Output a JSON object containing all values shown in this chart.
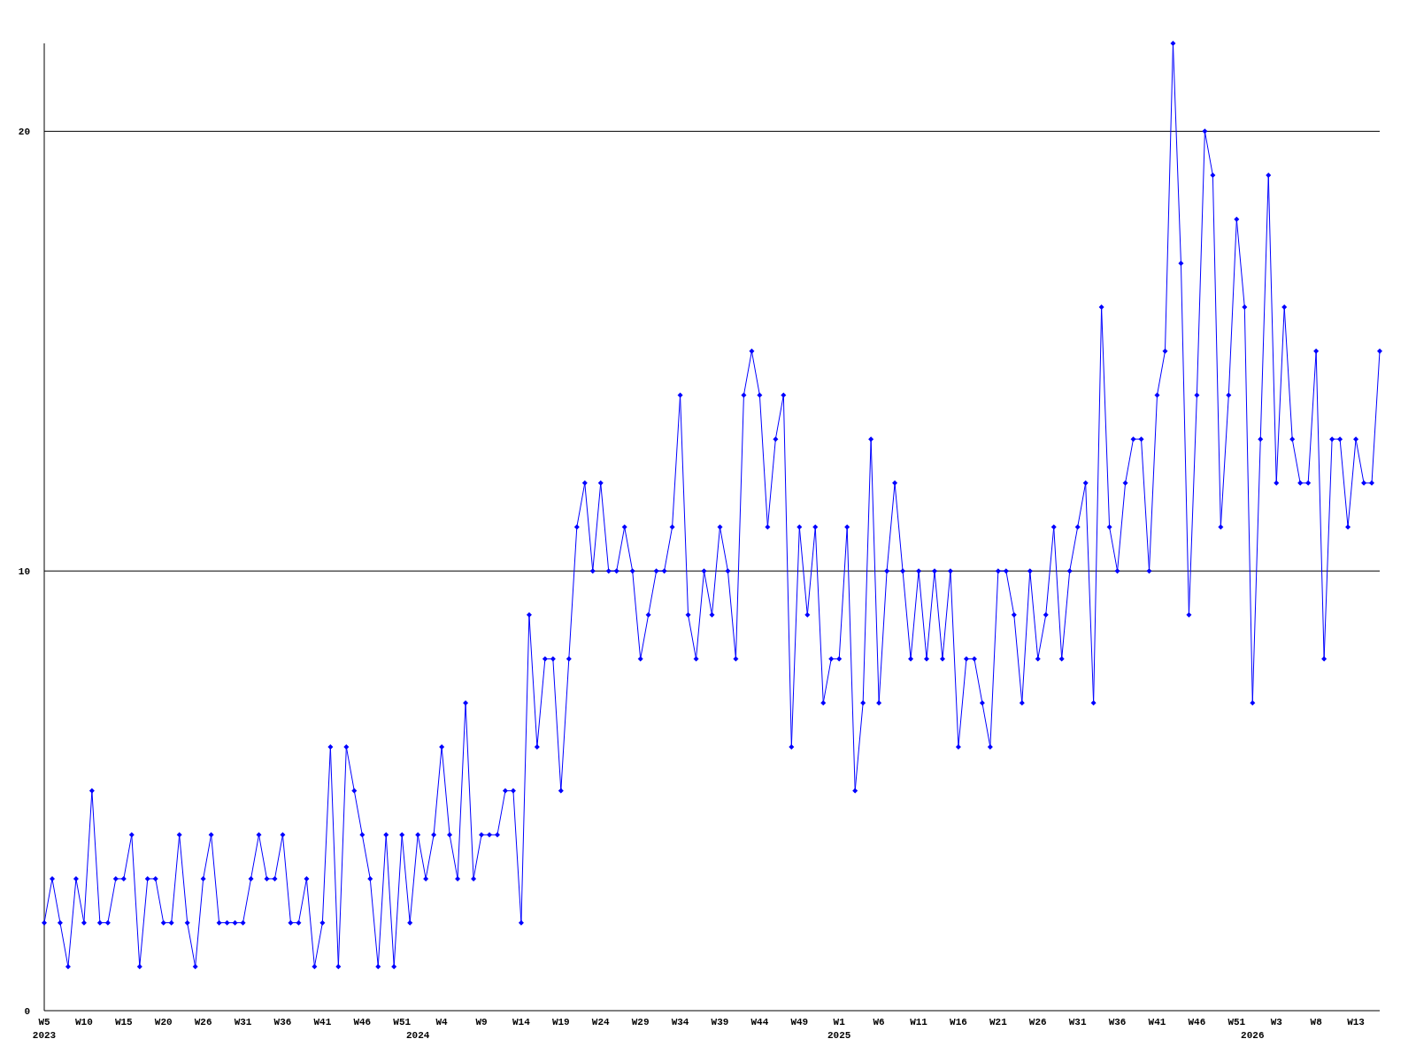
{
  "chart_data": {
    "type": "line",
    "categories": [
      "W5\n2023",
      null,
      null,
      null,
      null,
      "W10",
      null,
      null,
      null,
      null,
      "W15",
      null,
      null,
      null,
      null,
      "W20",
      null,
      null,
      null,
      null,
      "W26",
      null,
      null,
      null,
      null,
      "W31",
      null,
      null,
      null,
      null,
      "W36",
      null,
      null,
      null,
      null,
      "W41",
      null,
      null,
      null,
      null,
      "W46",
      null,
      null,
      null,
      null,
      "W51",
      null,
      "\n2024",
      null,
      null,
      "W4",
      null,
      null,
      null,
      null,
      "W9",
      null,
      null,
      null,
      null,
      "W14",
      null,
      null,
      null,
      null,
      "W19",
      null,
      null,
      null,
      null,
      "W24",
      null,
      null,
      null,
      null,
      "W29",
      null,
      null,
      null,
      null,
      "W34",
      null,
      null,
      null,
      null,
      "W39",
      null,
      null,
      null,
      null,
      "W44",
      null,
      null,
      null,
      null,
      "W49",
      null,
      null,
      null,
      null,
      "W1\n2025",
      null,
      null,
      null,
      null,
      "W6",
      null,
      null,
      null,
      null,
      "W11",
      null,
      null,
      null,
      null,
      "W16",
      null,
      null,
      null,
      null,
      "W21",
      null,
      null,
      null,
      null,
      "W26",
      null,
      null,
      null,
      null,
      "W31",
      null,
      null,
      null,
      null,
      "W36",
      null,
      null,
      null,
      null,
      "W41",
      null,
      null,
      null,
      null,
      "W46",
      null,
      null,
      null,
      null,
      "W51",
      null,
      "\n2026",
      null,
      null,
      "W3",
      null,
      null,
      null,
      null,
      "W8",
      null,
      null,
      null,
      null,
      "W13",
      null,
      null,
      null
    ],
    "series": [
      {
        "color": "#0000ff",
        "values": [
          2,
          3,
          2,
          1,
          3,
          2,
          5,
          2,
          2,
          3,
          3,
          4,
          1,
          3,
          3,
          2,
          2,
          4,
          2,
          1,
          3,
          4,
          2,
          2,
          2,
          2,
          3,
          4,
          3,
          3,
          4,
          2,
          2,
          3,
          1,
          2,
          6,
          1,
          6,
          5,
          4,
          3,
          1,
          4,
          1,
          4,
          2,
          4,
          3,
          4,
          6,
          4,
          3,
          7,
          3,
          4,
          4,
          4,
          5,
          5,
          2,
          9,
          6,
          8,
          8,
          5,
          8,
          11,
          12,
          10,
          12,
          10,
          10,
          11,
          10,
          8,
          9,
          10,
          10,
          11,
          14,
          9,
          8,
          10,
          9,
          11,
          10,
          8,
          14,
          15,
          14,
          11,
          13,
          14,
          6,
          11,
          9,
          11,
          7,
          8,
          8,
          11,
          5,
          7,
          13,
          7,
          10,
          12,
          10,
          8,
          10,
          8,
          10,
          8,
          10,
          6,
          8,
          8,
          7,
          6,
          10,
          10,
          9,
          7,
          10,
          8,
          9,
          11,
          8,
          10,
          11,
          12,
          7,
          16,
          11,
          10,
          12,
          13,
          13,
          10,
          14,
          15,
          22,
          17,
          9,
          14,
          20,
          19,
          11,
          14,
          18,
          16,
          7,
          13,
          19,
          12,
          16,
          13,
          12,
          12,
          15,
          8,
          13,
          13,
          11,
          13,
          12,
          12,
          15
        ]
      }
    ],
    "ylim": [
      0,
      22
    ],
    "yticks": [
      0,
      10,
      20
    ],
    "grid": "y",
    "marker": "diamond",
    "line_style": "solid"
  }
}
